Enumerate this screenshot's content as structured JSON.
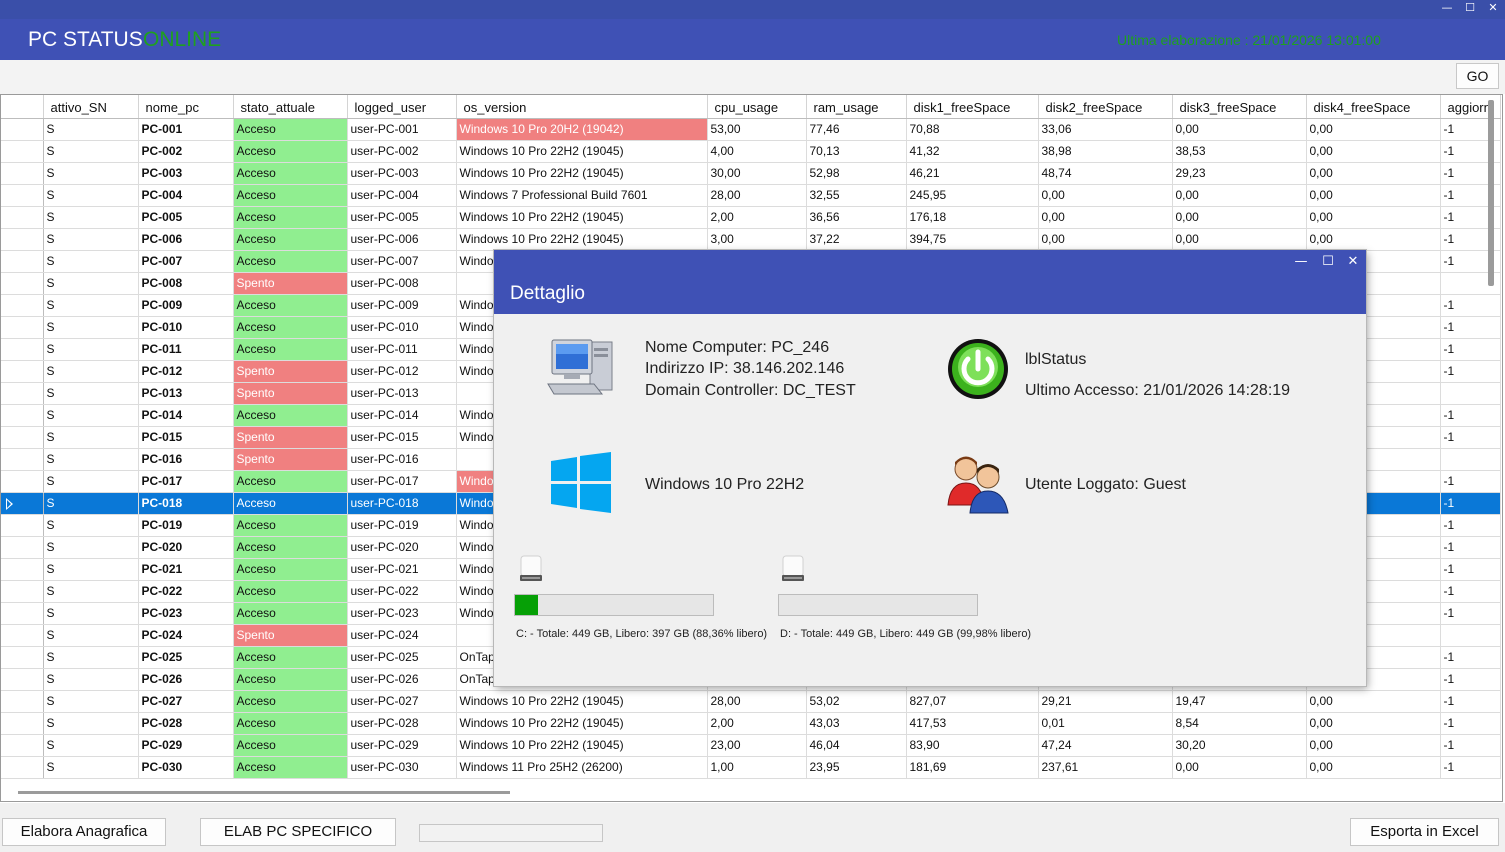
{
  "window": {
    "title": "PC STATUS",
    "status": "ONLINE",
    "minimize": "—",
    "maximize": "☐",
    "close": "✕"
  },
  "header": {
    "last_elaboration": "Ultima elaborazione : 21/01/2026 13:01:00"
  },
  "toolbar": {
    "go_label": "GO"
  },
  "grid": {
    "columns": [
      "attivo_SN",
      "nome_pc",
      "stato_attuale",
      "logged_user",
      "os_version",
      "cpu_usage",
      "ram_usage",
      "disk1_freeSpace",
      "disk2_freeSpace",
      "disk3_freeSpace",
      "disk4_freeSpace",
      "aggiorn"
    ],
    "rows": [
      {
        "a": "S",
        "n": "PC-001",
        "s": "Acceso",
        "u": "user-PC-001",
        "os": "Windows 10 Pro 20H2 (19042)",
        "oswarn": true,
        "cpu": "53,00",
        "cc": "o",
        "ram": "77,46",
        "rc": "o",
        "d1": "70,88",
        "d1c": "g",
        "d2": "33,06",
        "d2c": "g",
        "d3": "0,00",
        "d3c": "r",
        "d4": "0,00",
        "d4c": "r",
        "ag": "-1"
      },
      {
        "a": "S",
        "n": "PC-002",
        "s": "Acceso",
        "u": "user-PC-002",
        "os": "Windows 10 Pro 22H2 (19045)",
        "cpu": "4,00",
        "cc": "g",
        "ram": "70,13",
        "rc": "o",
        "d1": "41,32",
        "d1c": "g",
        "d2": "38,98",
        "d2c": "g",
        "d3": "38,53",
        "d3c": "g",
        "d4": "0,00",
        "d4c": "r",
        "ag": "-1"
      },
      {
        "a": "S",
        "n": "PC-003",
        "s": "Acceso",
        "u": "user-PC-003",
        "os": "Windows 10 Pro 22H2 (19045)",
        "cpu": "30,00",
        "cc": "g",
        "ram": "52,98",
        "rc": "o",
        "d1": "46,21",
        "d1c": "g",
        "d2": "48,74",
        "d2c": "g",
        "d3": "29,23",
        "d3c": "o",
        "d4": "0,00",
        "d4c": "r",
        "ag": "-1"
      },
      {
        "a": "S",
        "n": "PC-004",
        "s": "Acceso",
        "u": "user-PC-004",
        "os": "Windows 7 Professional Build 7601",
        "cpu": "28,00",
        "cc": "g",
        "ram": "32,55",
        "rc": "g",
        "d1": "245,95",
        "d1c": "g",
        "d2": "0,00",
        "d2c": "r",
        "d3": "0,00",
        "d3c": "r",
        "d4": "0,00",
        "d4c": "r",
        "ag": "-1"
      },
      {
        "a": "S",
        "n": "PC-005",
        "s": "Acceso",
        "u": "user-PC-005",
        "os": "Windows 10 Pro 22H2 (19045)",
        "cpu": "2,00",
        "cc": "g",
        "ram": "36,56",
        "rc": "g",
        "d1": "176,18",
        "d1c": "g",
        "d2": "0,00",
        "d2c": "r",
        "d3": "0,00",
        "d3c": "r",
        "d4": "0,00",
        "d4c": "r",
        "ag": "-1"
      },
      {
        "a": "S",
        "n": "PC-006",
        "s": "Acceso",
        "u": "user-PC-006",
        "os": "Windows 10 Pro 22H2 (19045)",
        "cpu": "3,00",
        "cc": "g",
        "ram": "37,22",
        "rc": "g",
        "d1": "394,75",
        "d1c": "g",
        "d2": "0,00",
        "d2c": "r",
        "d3": "0,00",
        "d3c": "r",
        "d4": "0,00",
        "d4c": "r",
        "ag": "-1"
      },
      {
        "a": "S",
        "n": "PC-007",
        "s": "Acceso",
        "u": "user-PC-007",
        "os": "Window",
        "ag": "-1"
      },
      {
        "a": "S",
        "n": "PC-008",
        "s": "Spento",
        "u": "user-PC-008",
        "os": "",
        "ag": ""
      },
      {
        "a": "S",
        "n": "PC-009",
        "s": "Acceso",
        "u": "user-PC-009",
        "os": "Window",
        "ag": "-1"
      },
      {
        "a": "S",
        "n": "PC-010",
        "s": "Acceso",
        "u": "user-PC-010",
        "os": "Window",
        "ag": "-1"
      },
      {
        "a": "S",
        "n": "PC-011",
        "s": "Acceso",
        "u": "user-PC-011",
        "os": "Window",
        "ag": "-1"
      },
      {
        "a": "S",
        "n": "PC-012",
        "s": "Spento",
        "u": "user-PC-012",
        "os": "Window",
        "ag": "-1"
      },
      {
        "a": "S",
        "n": "PC-013",
        "s": "Spento",
        "u": "user-PC-013",
        "os": "",
        "ag": ""
      },
      {
        "a": "S",
        "n": "PC-014",
        "s": "Acceso",
        "u": "user-PC-014",
        "os": "Window",
        "ag": "-1"
      },
      {
        "a": "S",
        "n": "PC-015",
        "s": "Spento",
        "u": "user-PC-015",
        "os": "Window",
        "ag": "-1"
      },
      {
        "a": "S",
        "n": "PC-016",
        "s": "Spento",
        "u": "user-PC-016",
        "os": "",
        "ag": ""
      },
      {
        "a": "S",
        "n": "PC-017",
        "s": "Acceso",
        "u": "user-PC-017",
        "os": "Window",
        "oswarn": true,
        "ag": "-1"
      },
      {
        "a": "S",
        "n": "PC-018",
        "s": "Acceso",
        "u": "user-PC-018",
        "os": "Window",
        "ag": "-1",
        "selected": true
      },
      {
        "a": "S",
        "n": "PC-019",
        "s": "Acceso",
        "u": "user-PC-019",
        "os": "Window",
        "ag": "-1"
      },
      {
        "a": "S",
        "n": "PC-020",
        "s": "Acceso",
        "u": "user-PC-020",
        "os": "Window",
        "ag": "-1"
      },
      {
        "a": "S",
        "n": "PC-021",
        "s": "Acceso",
        "u": "user-PC-021",
        "os": "Window",
        "ag": "-1"
      },
      {
        "a": "S",
        "n": "PC-022",
        "s": "Acceso",
        "u": "user-PC-022",
        "os": "Window",
        "ag": "-1"
      },
      {
        "a": "S",
        "n": "PC-023",
        "s": "Acceso",
        "u": "user-PC-023",
        "os": "Window",
        "ag": "-1"
      },
      {
        "a": "S",
        "n": "PC-024",
        "s": "Spento",
        "u": "user-PC-024",
        "os": "",
        "ag": ""
      },
      {
        "a": "S",
        "n": "PC-025",
        "s": "Acceso",
        "u": "user-PC-025",
        "os": "OnTap 8",
        "ag": "-1"
      },
      {
        "a": "S",
        "n": "PC-026",
        "s": "Acceso",
        "u": "user-PC-026",
        "os": "OnTap 8",
        "ag": "-1"
      },
      {
        "a": "S",
        "n": "PC-027",
        "s": "Acceso",
        "u": "user-PC-027",
        "os": "Windows 10 Pro 22H2 (19045)",
        "cpu": "28,00",
        "cc": "g",
        "ram": "53,02",
        "rc": "o",
        "d1": "827,07",
        "d1c": "g",
        "d2": "29,21",
        "d2c": "o",
        "d3": "19,47",
        "d3c": "o",
        "d4": "0,00",
        "d4c": "r",
        "ag": "-1"
      },
      {
        "a": "S",
        "n": "PC-028",
        "s": "Acceso",
        "u": "user-PC-028",
        "os": "Windows 10 Pro 22H2 (19045)",
        "cpu": "2,00",
        "cc": "g",
        "ram": "43,03",
        "rc": "g",
        "d1": "417,53",
        "d1c": "g",
        "d2": "0,01",
        "d2c": "r",
        "d3": "8,54",
        "d3c": "r",
        "d4": "0,00",
        "d4c": "r",
        "ag": "-1"
      },
      {
        "a": "S",
        "n": "PC-029",
        "s": "Acceso",
        "u": "user-PC-029",
        "os": "Windows 10 Pro 22H2 (19045)",
        "cpu": "23,00",
        "cc": "g",
        "ram": "46,04",
        "rc": "g",
        "d1": "83,90",
        "d1c": "g",
        "d2": "47,24",
        "d2c": "g",
        "d3": "30,20",
        "d3c": "g",
        "d4": "0,00",
        "d4c": "r",
        "ag": "-1"
      },
      {
        "a": "S",
        "n": "PC-030",
        "s": "Acceso",
        "u": "user-PC-030",
        "os": "Windows 11 Pro 25H2 (26200)",
        "cpu": "1,00",
        "cc": "g",
        "ram": "23,95",
        "rc": "g",
        "d1": "181,69",
        "d1c": "g",
        "d2": "237,61",
        "d2c": "g",
        "d3": "0,00",
        "d3c": "r",
        "d4": "0,00",
        "d4c": "r",
        "ag": "-1"
      }
    ]
  },
  "dialog": {
    "title": "Dettaglio",
    "computer_name": "Nome Computer: PC_246",
    "ip": "Indirizzo IP: 38.146.202.146",
    "domain": "Domain Controller: DC_TEST",
    "status_label": "lblStatus",
    "last_access": "Ultimo Accesso: 21/01/2026 14:28:19",
    "os": "Windows 10 Pro 22H2",
    "logged_user": "Utente Loggato: Guest",
    "disks": [
      {
        "label": "C: - Totale: 449 GB, Libero: 397 GB (88,36% libero)",
        "used_fraction": 0.1164
      },
      {
        "label": "D: - Totale: 449 GB, Libero: 449 GB (99,98% libero)",
        "used_fraction": 0.0002
      }
    ]
  },
  "bottom": {
    "elabora_anagrafica": "Elabora Anagrafica",
    "elab_pc_specifico": "ELAB PC SPECIFICO",
    "esporta_excel": "Esporta in Excel"
  },
  "colors": {
    "header": "#3f51b5",
    "accent_green": "#1fa01f",
    "selection": "#0a78d7"
  },
  "icons": [
    "computer-icon",
    "power-icon",
    "windows-logo-icon",
    "users-icon",
    "drive-icon"
  ]
}
